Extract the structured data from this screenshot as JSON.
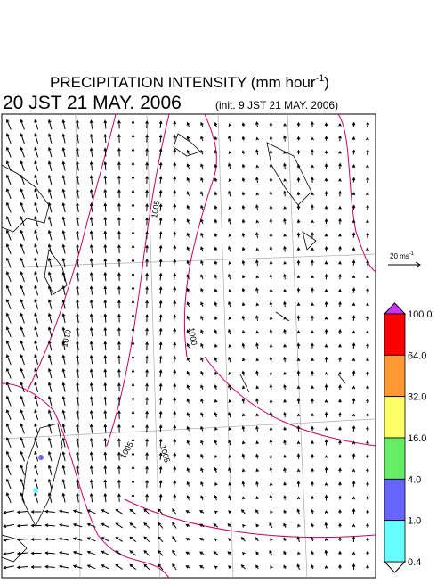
{
  "header": {
    "title": "PRECIPITATION INTENSITY (mm hour",
    "title_sup": "-1",
    "title_end": ")",
    "valid_time": "20 JST 21 MAY. 2006",
    "init_time": "(init. 9 JST 21 MAY. 2006)"
  },
  "wind_scale": {
    "label": "20 ms",
    "label_sup": "-1"
  },
  "contour_labels": [
    "1005",
    "1010",
    "1000",
    "1005",
    "1005"
  ],
  "colorbar": {
    "labels": [
      "100.0",
      "64.0",
      "32.0",
      "16.0",
      "4.0",
      "1.0",
      "0.4"
    ],
    "colors": [
      "#ff0000",
      "#ff9933",
      "#ffff66",
      "#66ee66",
      "#6666ff",
      "#66ffff"
    ],
    "over_color": "#cc33ff",
    "under_color": "#ffffff"
  }
}
